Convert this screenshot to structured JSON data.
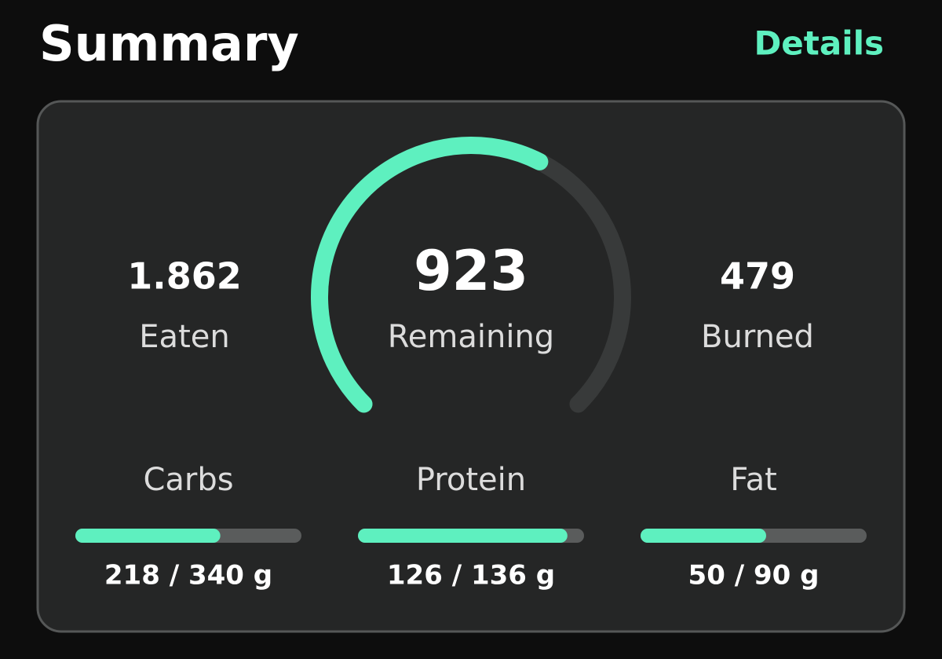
{
  "header": {
    "title": "Summary",
    "action": "Details"
  },
  "summary": {
    "eaten": {
      "value": 1862,
      "label": "1.862",
      "caption": "Eaten"
    },
    "remaining": {
      "value": 923,
      "caption": "Remaining"
    },
    "burned": {
      "value": 479,
      "caption": "Burned"
    }
  },
  "macros": [
    {
      "name": "Carbs",
      "value": 218,
      "goal": 340,
      "label": "218 / 340 g"
    },
    {
      "name": "Protein",
      "value": 126,
      "goal": 136,
      "label": "126 / 136 g"
    },
    {
      "name": "Fat",
      "value": 50,
      "goal": 90,
      "label": "50 / 90 g"
    }
  ]
}
